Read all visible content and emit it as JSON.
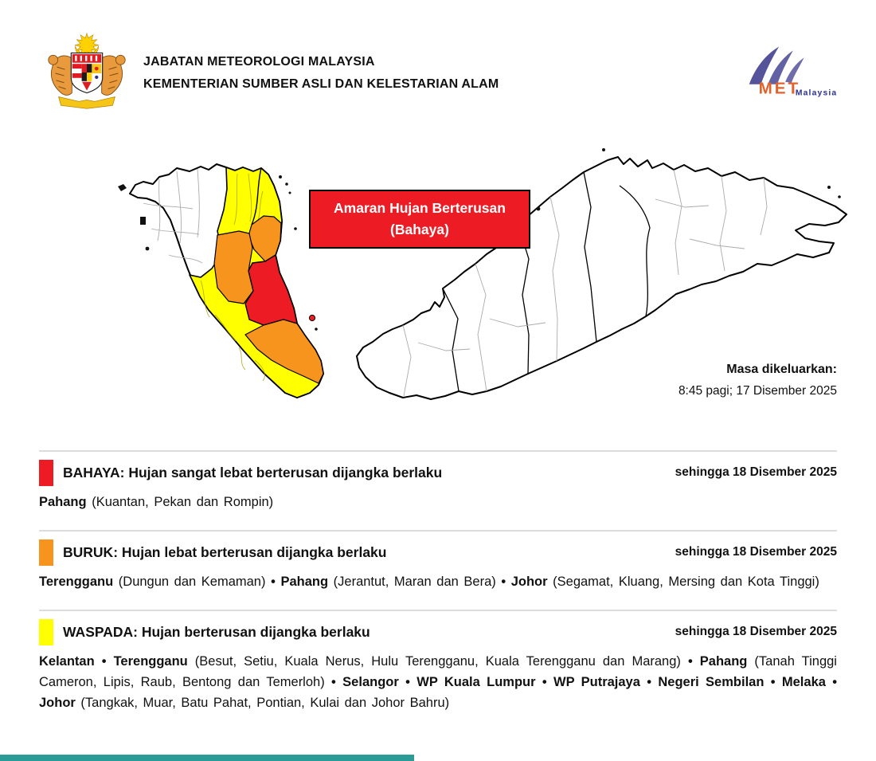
{
  "header": {
    "agency_line1": "JABATAN METEOROLOGI MALAYSIA",
    "agency_line2": "KEMENTERIAN SUMBER ASLI DAN KELESTARIAN ALAM",
    "met_logo_text": "MET",
    "met_logo_subtext": "Malaysia"
  },
  "map": {
    "banner_line1": "Amaran Hujan Berterusan",
    "banner_line2": "(Bahaya)",
    "banner_color": "#ED1C24",
    "issued_label": "Masa dikeluarkan:",
    "issued_value": "8:45 pagi; 17 Disember 2025",
    "colors": {
      "waspada": "#FFFF00",
      "buruk": "#F7941D",
      "bahaya": "#ED1C24",
      "no_warning": "#FFFFFF"
    }
  },
  "warnings": [
    {
      "level": "BAHAYA",
      "color": "#ED1C24",
      "title": "BAHAYA: Hujan sangat lebat berterusan dijangka berlaku",
      "valid_until": "sehingga 18 Disember 2025",
      "areas": [
        {
          "state": "Pahang",
          "districts": " (Kuantan, Pekan dan Rompin)"
        }
      ]
    },
    {
      "level": "BURUK",
      "color": "#F7941D",
      "title": "BURUK: Hujan lebat berterusan dijangka berlaku",
      "valid_until": "sehingga 18 Disember 2025",
      "areas": [
        {
          "state": "Terengganu",
          "districts": " (Dungun dan Kemaman)"
        },
        {
          "state": "Pahang",
          "districts": " (Jerantut, Maran dan Bera)"
        },
        {
          "state": "Johor",
          "districts": " (Segamat, Kluang, Mersing dan Kota Tinggi)"
        }
      ]
    },
    {
      "level": "WASPADA",
      "color": "#FFFF00",
      "title": "WASPADA: Hujan berterusan dijangka berlaku",
      "valid_until": "sehingga 18 Disember 2025",
      "areas": [
        {
          "state": "Kelantan",
          "districts": ""
        },
        {
          "state": "Terengganu",
          "districts": " (Besut, Setiu, Kuala Nerus, Hulu Terengganu, Kuala Terengganu dan Marang)"
        },
        {
          "state": "Pahang",
          "districts": " (Tanah Tinggi Cameron, Lipis, Raub, Bentong dan Temerloh)"
        },
        {
          "state": "Selangor",
          "districts": ""
        },
        {
          "state": "WP Kuala Lumpur",
          "districts": ""
        },
        {
          "state": "WP Putrajaya",
          "districts": ""
        },
        {
          "state": "Negeri Sembilan",
          "districts": ""
        },
        {
          "state": "Melaka",
          "districts": ""
        },
        {
          "state": "Johor",
          "districts": " (Tangkak, Muar, Batu Pahat, Pontian, Kulai dan Johor Bahru)"
        }
      ]
    }
  ],
  "footer": {
    "bar_color": "#2B9B98"
  }
}
